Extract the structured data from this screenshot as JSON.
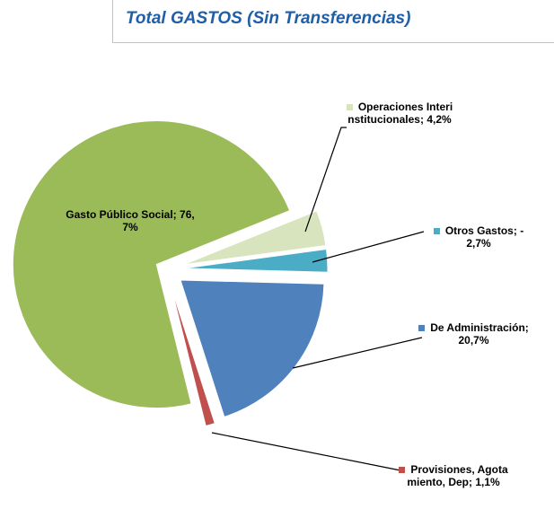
{
  "chart_data": {
    "type": "pie",
    "title": "Total GASTOS (Sin Transferencias)",
    "categories": [
      "Gasto Público Social",
      "Operaciones Interinstitucionales",
      "Otros Gastos",
      "De Administración",
      "Provisiones, Agotamiento, Dep"
    ],
    "values": [
      76.7,
      4.2,
      -2.7,
      20.7,
      1.1
    ],
    "value_labels": [
      "76,7%",
      "4,2%",
      "-2,7%",
      "20,7%",
      "1,1%"
    ],
    "separator": "; ",
    "colors": [
      "#9bbb59",
      "#d7e4bd",
      "#4bacc6",
      "#4f81bd",
      "#c0504d"
    ]
  }
}
